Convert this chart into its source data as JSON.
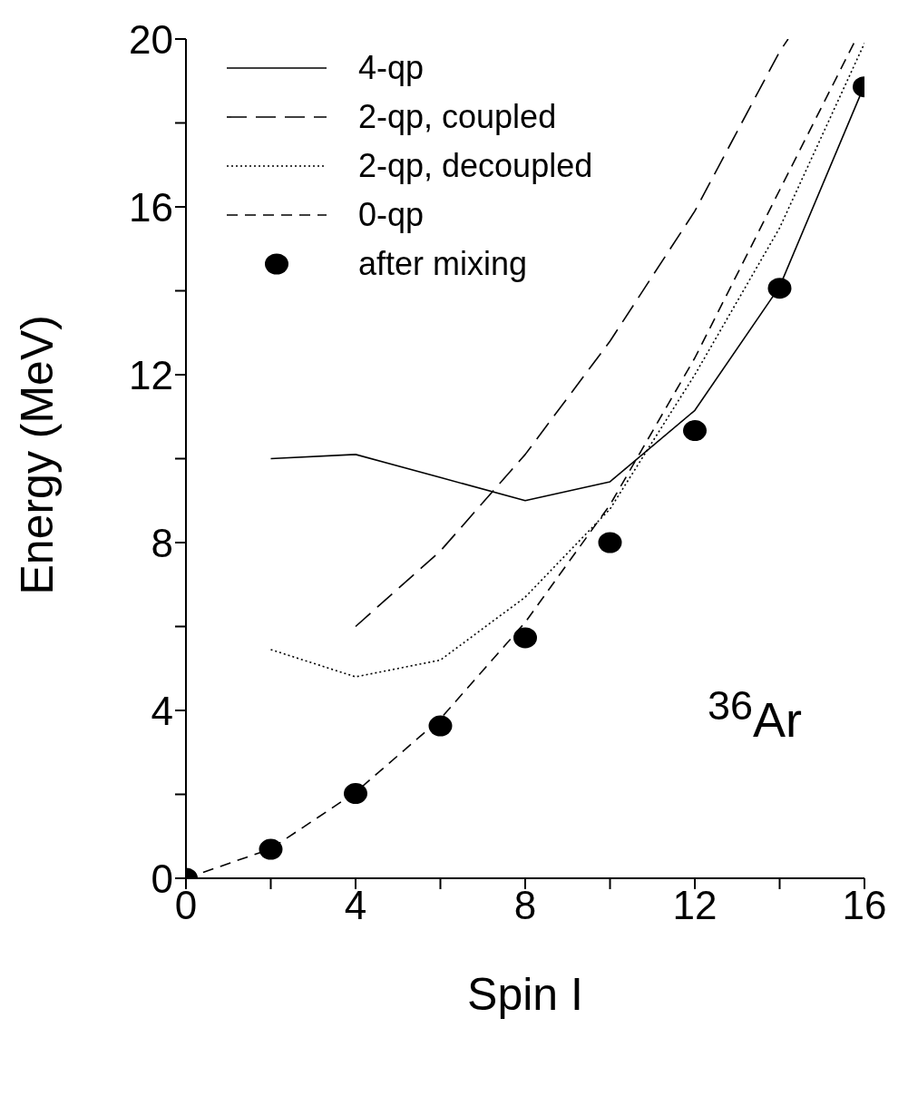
{
  "chart_data": {
    "type": "line",
    "xlabel": "Spin I",
    "ylabel": "Energy (MeV)",
    "xlim": [
      0,
      16
    ],
    "ylim": [
      0,
      20
    ],
    "xticks": [
      0,
      {
        "value": 2,
        "label": null
      },
      4,
      {
        "value": 6,
        "label": null
      },
      8,
      {
        "value": 10,
        "label": null
      },
      12,
      {
        "value": 14,
        "label": null
      },
      16
    ],
    "yticks": [
      0,
      {
        "value": 2,
        "label": null
      },
      4,
      {
        "value": 6,
        "label": null
      },
      8,
      {
        "value": 10,
        "label": null
      },
      12,
      {
        "value": 14,
        "label": null
      },
      16,
      {
        "value": 18,
        "label": null
      },
      20
    ],
    "grid": false,
    "legend": "top left",
    "annotations": [
      "$^{36}$Ar"
    ],
    "series": [
      {
        "name": "4-qp",
        "color": "#000000",
        "line_style": "solid",
        "marker": "none",
        "x": [
          2,
          4,
          6,
          8,
          10,
          12,
          14,
          16
        ],
        "values": [
          10.0,
          10.1,
          9.55,
          9.0,
          9.45,
          11.15,
          14.1,
          18.9
        ]
      },
      {
        "name": "2-qp, coupled",
        "color": "#000000",
        "line_style": "dashed",
        "marker": "none",
        "x": [
          4,
          6,
          8,
          10,
          12,
          14,
          14.2
        ],
        "values": [
          6.0,
          7.8,
          10.1,
          12.8,
          15.9,
          19.7,
          20
        ]
      },
      {
        "name": "2-qp, decoupled",
        "color": "#000000",
        "line_style": "dotted",
        "marker": "none",
        "x": [
          2,
          4,
          6,
          8,
          10,
          12,
          14,
          16
        ],
        "values": [
          5.45,
          4.8,
          5.2,
          6.7,
          8.8,
          12.0,
          15.5,
          19.9
        ]
      },
      {
        "name": "0-qp",
        "color": "#000000",
        "line_style": "dashed",
        "marker": "none",
        "x": [
          0,
          2,
          4,
          6,
          8,
          10,
          12,
          14,
          15.8
        ],
        "values": [
          0,
          0.7,
          2.05,
          3.8,
          6.1,
          8.9,
          12.4,
          16.4,
          20
        ]
      },
      {
        "name": "after mixing",
        "type": "scatter",
        "color": "#000000",
        "marker": "circle",
        "x": [
          0,
          2,
          4,
          6,
          8,
          10,
          12,
          14,
          16
        ],
        "values": [
          0,
          0.69,
          2.02,
          3.63,
          5.73,
          8.0,
          10.67,
          14.06,
          18.86
        ]
      }
    ]
  }
}
